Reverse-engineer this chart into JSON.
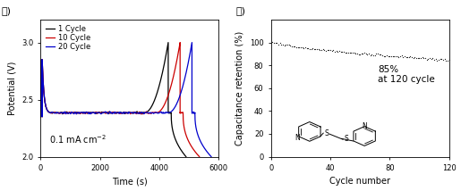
{
  "panel_a": {
    "title_label": "가)",
    "xlabel": "Time (s)",
    "ylabel": "Potential (V)",
    "xlim": [
      0,
      6000
    ],
    "ylim": [
      2.0,
      3.2
    ],
    "yticks": [
      2.0,
      2.5,
      3.0
    ],
    "xticks": [
      0,
      2000,
      4000,
      6000
    ],
    "annotation": "0.1 mA cm$^{-2}$",
    "curves": [
      {
        "label": "1 Cycle",
        "color": "#000000"
      },
      {
        "label": "10 Cycle",
        "color": "#cc0000"
      },
      {
        "label": "20 Cycle",
        "color": "#0000cc"
      }
    ]
  },
  "panel_b": {
    "title_label": "나)",
    "xlabel": "Cycle number",
    "ylabel": "Capacitance retention (%)",
    "xlim": [
      0,
      120
    ],
    "ylim": [
      0,
      120
    ],
    "yticks": [
      0,
      20,
      40,
      60,
      80,
      100
    ],
    "xticks": [
      0,
      40,
      80,
      120
    ],
    "annotation": "85%\nat 120 cycle",
    "marker_color": "#222222",
    "marker_size": 1.8
  },
  "bg_color": "#ffffff",
  "font_size_label": 7,
  "font_size_tick": 6,
  "font_size_legend": 6,
  "font_size_annotation": 7
}
